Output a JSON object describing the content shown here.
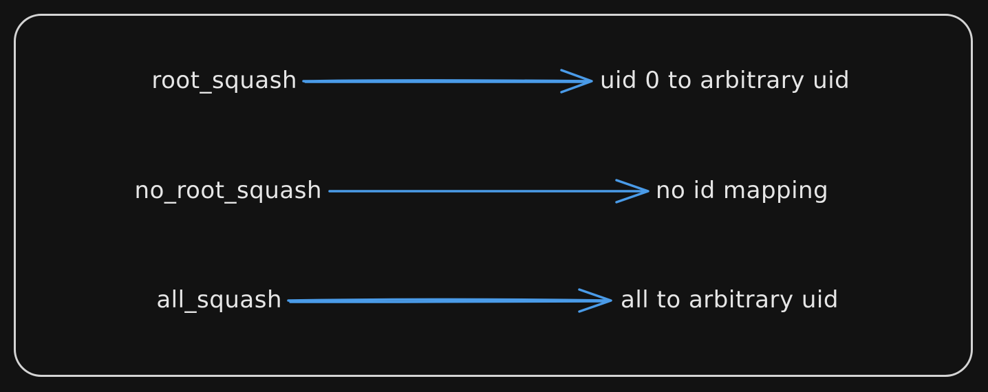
{
  "colors": {
    "background": "#121212",
    "frame": "#d4d4d4",
    "text": "#e6e6e6",
    "arrow": "#4a9be8"
  },
  "mappings": [
    {
      "option": "root_squash",
      "result": "uid 0 to arbitrary uid"
    },
    {
      "option": "no_root_squash",
      "result": "no id mapping"
    },
    {
      "option": "all_squash",
      "result": "all to arbitrary uid"
    }
  ]
}
